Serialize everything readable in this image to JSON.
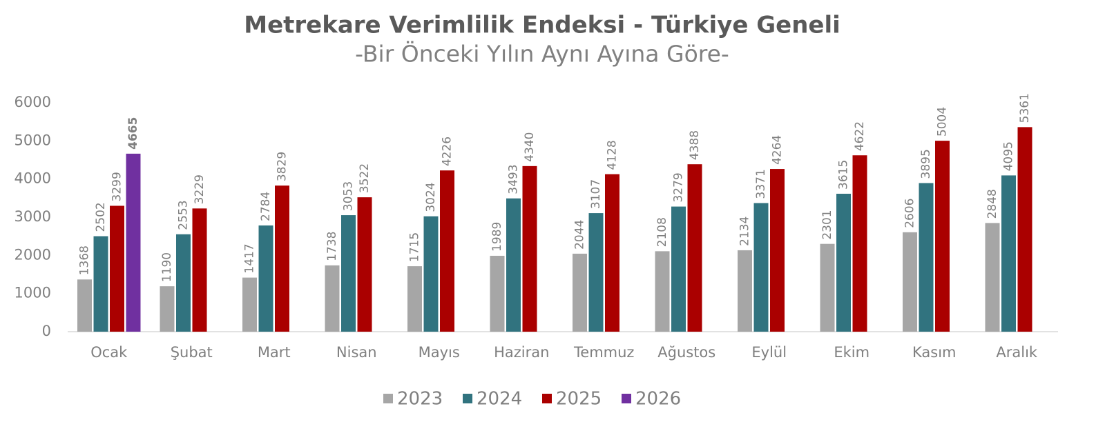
{
  "chart_data": {
    "type": "bar",
    "title": "Metrekare Verimlilik Endeksi - Türkiye Geneli",
    "subtitle": "-Bir Önceki Yılın Aynı Ayına Göre-",
    "categories": [
      "Ocak",
      "Şubat",
      "Mart",
      "Nisan",
      "Mayıs",
      "Haziran",
      "Temmuz",
      "Ağustos",
      "Eylül",
      "Ekim",
      "Kasım",
      "Aralık"
    ],
    "series": [
      {
        "name": "2023",
        "color": "#a6a6a6",
        "values": [
          1368,
          1190,
          1417,
          1738,
          1715,
          1989,
          2044,
          2108,
          2134,
          2301,
          2606,
          2848
        ]
      },
      {
        "name": "2024",
        "color": "#31737f",
        "values": [
          2502,
          2553,
          2784,
          3053,
          3024,
          3493,
          3107,
          3279,
          3371,
          3615,
          3895,
          4095
        ]
      },
      {
        "name": "2025",
        "color": "#aa0000",
        "values": [
          3299,
          3229,
          3829,
          3522,
          4226,
          4340,
          4128,
          4388,
          4264,
          4622,
          5004,
          5361
        ]
      },
      {
        "name": "2026",
        "color": "#7030a0",
        "values": [
          4665,
          null,
          null,
          null,
          null,
          null,
          null,
          null,
          null,
          null,
          null,
          null
        ]
      }
    ],
    "ylim": [
      0,
      6000
    ],
    "yticks": [
      0,
      1000,
      2000,
      3000,
      4000,
      5000,
      6000
    ],
    "grid": false,
    "legend": "bottom"
  }
}
